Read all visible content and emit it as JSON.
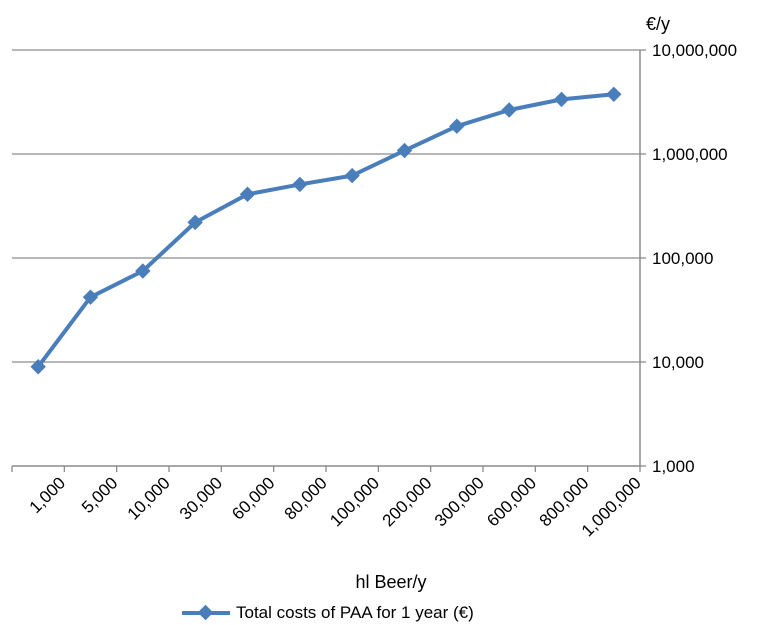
{
  "chart_data": {
    "type": "line",
    "title": "",
    "xlabel": "hl Beer/y",
    "ylabel": "€/y",
    "y_scale": "log",
    "ylim": [
      1000,
      10000000
    ],
    "y_ticks": [
      "1,000",
      "10,000",
      "100,000",
      "1,000,000",
      "10,000,000"
    ],
    "categories": [
      "1,000",
      "5,000",
      "10,000",
      "30,000",
      "60,000",
      "80,000",
      "100,000",
      "200,000",
      "300,000",
      "600,000",
      "800,000",
      "1,000,000"
    ],
    "series": [
      {
        "name": "Total costs of PAA for 1 year (€)",
        "color": "#4a7ebb",
        "marker": "diamond",
        "values": [
          9000,
          42000,
          75000,
          220000,
          410000,
          510000,
          620000,
          1080000,
          1850000,
          2650000,
          3350000,
          3750000
        ]
      }
    ],
    "grid": "horizontal",
    "y_axis_position": "right",
    "legend_position": "bottom"
  }
}
